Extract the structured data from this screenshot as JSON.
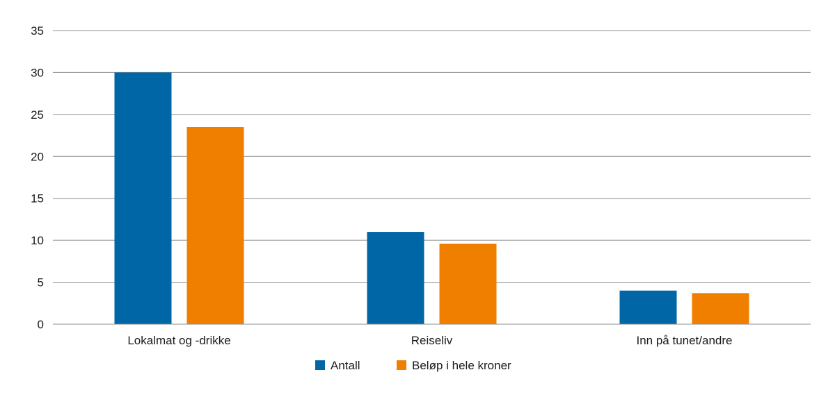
{
  "chart_data": {
    "type": "bar",
    "categories": [
      "Lokalmat og -drikke",
      "Reiseliv",
      "Inn på tunet/andre"
    ],
    "series": [
      {
        "name": "Antall",
        "values": [
          30,
          11,
          4
        ],
        "color": "#0066a6"
      },
      {
        "name": "Beløp i hele kroner",
        "values": [
          23.5,
          9.6,
          3.7
        ],
        "color": "#f07f00"
      }
    ],
    "ylim": [
      0,
      35
    ],
    "yticks": [
      0,
      5,
      10,
      15,
      20,
      25,
      30,
      35
    ],
    "grid": true,
    "legend": "bottom-center",
    "title": "",
    "xlabel": "",
    "ylabel": ""
  }
}
